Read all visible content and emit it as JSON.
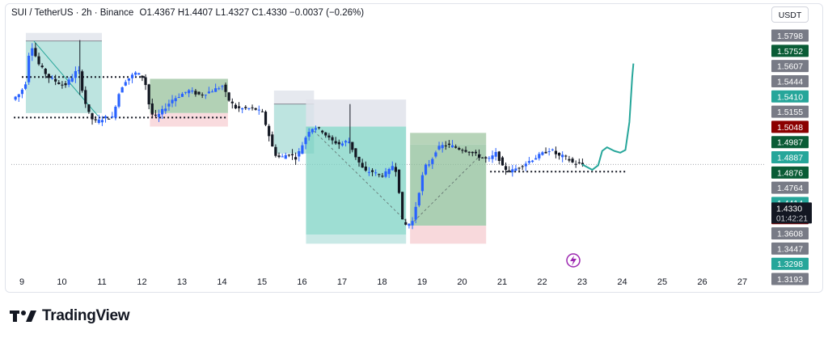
{
  "header": {
    "symbol": "SUI / TetherUS · 2h · Binance",
    "open_label": "O",
    "open": "1.4367",
    "high_label": "H",
    "high": "1.4407",
    "low_label": "L",
    "low": "1.4327",
    "close_label": "C",
    "close": "1.4330",
    "change": "−0.0037 (−0.26%)"
  },
  "currency_button": "USDT",
  "brand": {
    "name": "TradingView"
  },
  "colors": {
    "up": "#26a69a",
    "down": "#131722",
    "candle_up_body": "#2962ff",
    "green_zone": "#b2dfdb",
    "red_zone": "#f8d7da",
    "gray_zone": "#e0e3eb",
    "projection": "#26a69a"
  },
  "chart_data": {
    "type": "candlestick",
    "x_ticks": [
      "9",
      "10",
      "11",
      "12",
      "13",
      "14",
      "15",
      "16",
      "17",
      "18",
      "19",
      "20",
      "21",
      "22",
      "23",
      "24",
      "25",
      "26",
      "27"
    ],
    "x_tick_days": [
      9,
      10,
      11,
      12,
      13,
      14,
      15,
      16,
      17,
      18,
      19,
      20,
      21,
      22,
      23,
      24,
      25,
      26,
      27
    ],
    "ylim": [
      1.3193,
      1.585
    ],
    "price_labels": [
      {
        "value": "1.5798",
        "color": "#787b86"
      },
      {
        "value": "1.5752",
        "color": "#0a5c36"
      },
      {
        "value": "1.5607",
        "color": "#787b86"
      },
      {
        "value": "1.5444",
        "color": "#787b86"
      },
      {
        "value": "1.5410",
        "color": "#26a69a"
      },
      {
        "value": "1.5155",
        "color": "#787b86"
      },
      {
        "value": "1.5048",
        "color": "#8b0000"
      },
      {
        "value": "1.4987",
        "color": "#0a5c36"
      },
      {
        "value": "1.4887",
        "color": "#26a69a"
      },
      {
        "value": "1.4876",
        "color": "#0a5c36"
      },
      {
        "value": "1.4764",
        "color": "#787b86"
      },
      {
        "value": "1.4414",
        "color": "#26a69a"
      },
      {
        "value": "1.4112",
        "color": "#8b0000"
      },
      {
        "value": "1.3608",
        "color": "#787b86"
      },
      {
        "value": "1.3447",
        "color": "#787b86"
      },
      {
        "value": "1.3298",
        "color": "#26a69a"
      },
      {
        "value": "1.3193",
        "color": "#787b86"
      }
    ],
    "current_price": {
      "value": "1.4330",
      "countdown": "01:42:21"
    },
    "last_close": 1.433,
    "support_level": 1.425,
    "path": [
      [
        8.8,
        1.505
      ],
      [
        9.0,
        1.512
      ],
      [
        9.15,
        1.525
      ],
      [
        9.25,
        1.57
      ],
      [
        9.45,
        1.545
      ],
      [
        9.7,
        1.53
      ],
      [
        9.9,
        1.525
      ],
      [
        10.1,
        1.52
      ],
      [
        10.3,
        1.53
      ],
      [
        10.45,
        1.54
      ],
      [
        10.6,
        1.505
      ],
      [
        10.75,
        1.485
      ],
      [
        10.9,
        1.48
      ],
      [
        11.1,
        1.485
      ],
      [
        11.3,
        1.485
      ],
      [
        11.45,
        1.51
      ],
      [
        11.6,
        1.525
      ],
      [
        11.75,
        1.53
      ],
      [
        11.9,
        1.535
      ],
      [
        12.05,
        1.53
      ],
      [
        12.15,
        1.52
      ],
      [
        12.25,
        1.49
      ],
      [
        12.4,
        1.485
      ],
      [
        12.6,
        1.495
      ],
      [
        12.8,
        1.505
      ],
      [
        13.0,
        1.51
      ],
      [
        13.2,
        1.515
      ],
      [
        13.5,
        1.51
      ],
      [
        13.8,
        1.515
      ],
      [
        14.05,
        1.52
      ],
      [
        14.2,
        1.505
      ],
      [
        14.4,
        1.495
      ],
      [
        14.6,
        1.495
      ],
      [
        14.85,
        1.495
      ],
      [
        15.05,
        1.49
      ],
      [
        15.25,
        1.46
      ],
      [
        15.35,
        1.445
      ],
      [
        15.5,
        1.44
      ],
      [
        15.7,
        1.445
      ],
      [
        15.9,
        1.44
      ],
      [
        16.05,
        1.455
      ],
      [
        16.2,
        1.47
      ],
      [
        16.35,
        1.475
      ],
      [
        16.55,
        1.47
      ],
      [
        16.75,
        1.46
      ],
      [
        17.0,
        1.455
      ],
      [
        17.2,
        1.46
      ],
      [
        17.4,
        1.44
      ],
      [
        17.6,
        1.425
      ],
      [
        17.8,
        1.425
      ],
      [
        18.0,
        1.42
      ],
      [
        18.2,
        1.425
      ],
      [
        18.35,
        1.435
      ],
      [
        18.45,
        1.41
      ],
      [
        18.55,
        1.37
      ],
      [
        18.65,
        1.365
      ],
      [
        18.8,
        1.37
      ],
      [
        18.95,
        1.4
      ],
      [
        19.1,
        1.43
      ],
      [
        19.25,
        1.435
      ],
      [
        19.4,
        1.45
      ],
      [
        19.6,
        1.455
      ],
      [
        19.8,
        1.453
      ],
      [
        20.0,
        1.45
      ],
      [
        20.2,
        1.448
      ],
      [
        20.45,
        1.442
      ],
      [
        20.7,
        1.438
      ],
      [
        20.9,
        1.446
      ],
      [
        21.05,
        1.43
      ],
      [
        21.25,
        1.425
      ],
      [
        21.45,
        1.43
      ],
      [
        21.65,
        1.435
      ],
      [
        21.85,
        1.44
      ],
      [
        22.05,
        1.445
      ],
      [
        22.25,
        1.45
      ],
      [
        22.45,
        1.442
      ],
      [
        22.6,
        1.442
      ],
      [
        22.8,
        1.435
      ],
      [
        23.0,
        1.433
      ]
    ],
    "projection": [
      [
        23.0,
        1.433
      ],
      [
        23.25,
        1.427
      ],
      [
        23.4,
        1.432
      ],
      [
        23.5,
        1.448
      ],
      [
        23.62,
        1.452
      ],
      [
        23.8,
        1.448
      ],
      [
        23.95,
        1.446
      ],
      [
        24.08,
        1.449
      ],
      [
        24.18,
        1.48
      ],
      [
        24.25,
        1.53
      ],
      [
        24.28,
        1.545
      ]
    ],
    "zones": [
      {
        "x0": 9.1,
        "x1": 11.0,
        "top": 1.579,
        "mid": 1.57,
        "bottom": 1.49,
        "type": "short-target"
      },
      {
        "x0": 12.2,
        "x1": 14.15,
        "top": 1.528,
        "mid": 1.49,
        "bottom": 1.475,
        "type": "long-stop"
      },
      {
        "x0": 15.3,
        "x1": 16.3,
        "top": 1.515,
        "mid": 1.5,
        "bottom": 1.445,
        "type": "short-target"
      },
      {
        "x0": 16.1,
        "x1": 18.6,
        "top": 1.505,
        "mid": 1.475,
        "bottom": 1.355,
        "type": "short-extended"
      },
      {
        "x0": 18.7,
        "x1": 20.6,
        "top": 1.468,
        "mid": 1.455,
        "bottom": 1.345,
        "type": "long-target-stop"
      }
    ],
    "dotted_lines": [
      {
        "x0": 9.0,
        "x1": 12.1,
        "y": 1.53
      },
      {
        "x0": 8.8,
        "x1": 14.1,
        "y": 1.485
      },
      {
        "x0": 20.7,
        "x1": 24.1,
        "y": 1.425
      }
    ]
  }
}
